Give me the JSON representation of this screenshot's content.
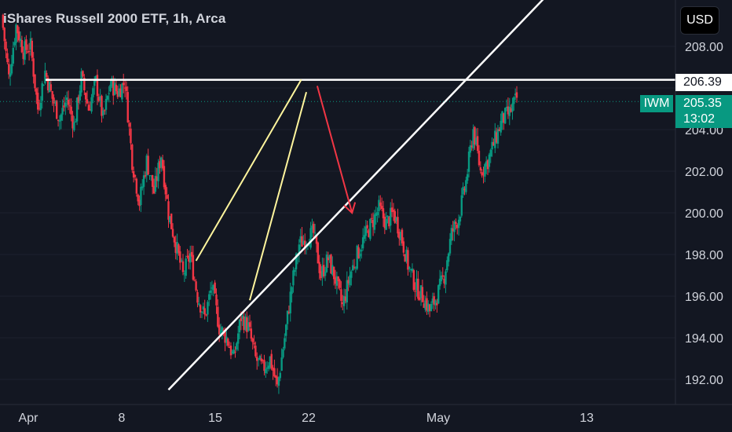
{
  "header": {
    "title": "iShares Russell 2000 ETF, 1h, Arca"
  },
  "currency_button": {
    "label": "USD"
  },
  "price_scale": {
    "ticks": [
      "208.00",
      "206.39",
      "204.00",
      "202.00",
      "200.00",
      "198.00",
      "196.00",
      "194.00",
      "192.00"
    ]
  },
  "resistance_tag": {
    "value": "206.39"
  },
  "last_price_tag": {
    "ticker": "IWM",
    "price": "205.35",
    "countdown": "13:02"
  },
  "time_axis": {
    "labels": [
      "Apr",
      "8",
      "15",
      "22",
      "May",
      "13"
    ]
  },
  "colors": {
    "background": "#131722",
    "up": "#089981",
    "down": "#f23645",
    "resistance": "#ffffff",
    "wedge": "#fff59d",
    "arrow": "#f23645",
    "text": "#d1d4dc"
  },
  "chart_data": {
    "type": "candlestick",
    "title": "iShares Russell 2000 ETF, 1h, Arca",
    "ticker": "IWM",
    "last_price": 205.35,
    "x_labels": [
      "Apr",
      "8",
      "15",
      "22",
      "May",
      "13"
    ],
    "y_ticks": [
      192,
      194,
      196,
      198,
      200,
      202,
      204,
      206,
      208
    ],
    "ylim": [
      191.0,
      210.0
    ],
    "path": [
      [
        0,
        209.5
      ],
      [
        1,
        206.5
      ],
      [
        2,
        209.0
      ],
      [
        3,
        207.8
      ],
      [
        4,
        208.0
      ],
      [
        5,
        205.0
      ],
      [
        6,
        206.8
      ],
      [
        7,
        205.5
      ],
      [
        8,
        204.5
      ],
      [
        9,
        205.5
      ],
      [
        10,
        204.2
      ],
      [
        11,
        206.5
      ],
      [
        12,
        205.0
      ],
      [
        13,
        206.3
      ],
      [
        14,
        204.5
      ],
      [
        15,
        206.2
      ],
      [
        16,
        205.8
      ],
      [
        17,
        206.3
      ],
      [
        18,
        202.5
      ],
      [
        19,
        200.5
      ],
      [
        20,
        202.5
      ],
      [
        21,
        201.0
      ],
      [
        22,
        202.8
      ],
      [
        23,
        200.0
      ],
      [
        24,
        198.5
      ],
      [
        25,
        197.0
      ],
      [
        26,
        198.0
      ],
      [
        27,
        196.0
      ],
      [
        28,
        195.0
      ],
      [
        29,
        196.5
      ],
      [
        30,
        194.5
      ],
      [
        31,
        194.0
      ],
      [
        32,
        193.0
      ],
      [
        33,
        195.0
      ],
      [
        34,
        194.5
      ],
      [
        35,
        193.0
      ],
      [
        36,
        192.5
      ],
      [
        37,
        193.0
      ],
      [
        38,
        191.6
      ],
      [
        39,
        194.0
      ],
      [
        40,
        196.5
      ],
      [
        41,
        198.5
      ],
      [
        42,
        198.8
      ],
      [
        43,
        199.0
      ],
      [
        44,
        197.0
      ],
      [
        45,
        197.8
      ],
      [
        46,
        196.8
      ],
      [
        47,
        195.5
      ],
      [
        48,
        197.0
      ],
      [
        49,
        198.0
      ],
      [
        50,
        198.8
      ],
      [
        51,
        199.5
      ],
      [
        52,
        200.2
      ],
      [
        53,
        199.5
      ],
      [
        54,
        200.0
      ],
      [
        55,
        199.0
      ],
      [
        56,
        197.5
      ],
      [
        57,
        196.5
      ],
      [
        58,
        196.0
      ],
      [
        59,
        195.3
      ],
      [
        60,
        196.0
      ],
      [
        61,
        197.0
      ],
      [
        62,
        199.0
      ],
      [
        63,
        199.8
      ],
      [
        64,
        201.5
      ],
      [
        65,
        204.0
      ],
      [
        66,
        202.0
      ],
      [
        67,
        202.5
      ],
      [
        68,
        203.5
      ],
      [
        69,
        204.5
      ],
      [
        70,
        204.8
      ],
      [
        71,
        205.5
      ]
    ],
    "annotations": {
      "resistance_line": {
        "y": 206.39,
        "x_range": [
          -0.5,
          71.5
        ]
      },
      "rising_wedge": {
        "upper": [
          [
            26.8,
            197.7
          ],
          [
            41.3,
            206.4
          ]
        ],
        "lower": [
          [
            34.2,
            195.8
          ],
          [
            42.0,
            205.8
          ]
        ]
      },
      "support_trendline": [
        [
          23.0,
          191.5
        ],
        [
          53.0,
          202.4
        ]
      ],
      "arrow": {
        "from": [
          43.5,
          206.1
        ],
        "to": [
          48.3,
          200.0
        ]
      }
    }
  }
}
